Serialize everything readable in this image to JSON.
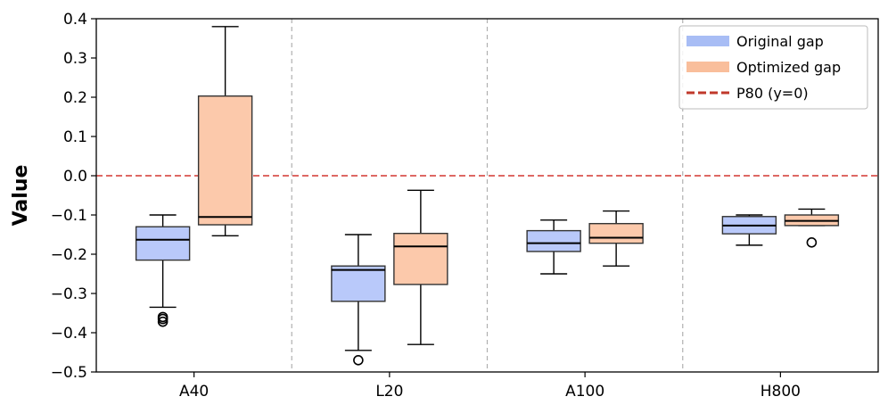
{
  "chart_data": {
    "type": "boxplot",
    "title": "",
    "xlabel": "",
    "ylabel": "Value",
    "ylim": [
      -0.5,
      0.4
    ],
    "yticks": [
      0.4,
      0.3,
      0.2,
      0.1,
      0.0,
      -0.1,
      -0.2,
      -0.3,
      -0.4,
      -0.5
    ],
    "ytick_labels": [
      "0.4",
      "0.3",
      "0.2",
      "0.1",
      "0.0",
      "−0.1",
      "−0.2",
      "−0.3",
      "−0.4",
      "−0.5"
    ],
    "categories": [
      "A40",
      "L20",
      "A100",
      "H800"
    ],
    "reference_line": {
      "label": "P80 (y=0)",
      "y": 0.0,
      "color": "#d9534f"
    },
    "legend_position": "top-right",
    "series": [
      {
        "name": "Original gap",
        "color": "#b9c9fa",
        "legend_color": "#a8bdf5",
        "boxes": [
          {
            "category": "A40",
            "whislo": -0.335,
            "q1": -0.215,
            "med": -0.163,
            "q3": -0.13,
            "whishi": -0.1,
            "fliers": [
              -0.36,
              -0.365,
              -0.372
            ]
          },
          {
            "category": "L20",
            "whislo": -0.445,
            "q1": -0.32,
            "med": -0.24,
            "q3": -0.23,
            "whishi": -0.15,
            "fliers": [
              -0.47
            ]
          },
          {
            "category": "A100",
            "whislo": -0.25,
            "q1": -0.193,
            "med": -0.172,
            "q3": -0.14,
            "whishi": -0.113,
            "fliers": []
          },
          {
            "category": "H800",
            "whislo": -0.177,
            "q1": -0.148,
            "med": -0.127,
            "q3": -0.104,
            "whishi": -0.1,
            "fliers": []
          }
        ]
      },
      {
        "name": "Optimized gap",
        "color": "#fcc9ab",
        "legend_color": "#f9be9b",
        "boxes": [
          {
            "category": "A40",
            "whislo": -0.153,
            "q1": -0.125,
            "med": -0.105,
            "q3": 0.203,
            "whishi": 0.38,
            "fliers": []
          },
          {
            "category": "L20",
            "whislo": -0.43,
            "q1": -0.277,
            "med": -0.18,
            "q3": -0.147,
            "whishi": -0.037,
            "fliers": []
          },
          {
            "category": "A100",
            "whislo": -0.23,
            "q1": -0.172,
            "med": -0.158,
            "q3": -0.122,
            "whishi": -0.09,
            "fliers": []
          },
          {
            "category": "H800",
            "whislo": -0.127,
            "q1": -0.127,
            "med": -0.115,
            "q3": -0.1,
            "whishi": -0.085,
            "fliers": [
              -0.17
            ]
          }
        ]
      }
    ]
  }
}
